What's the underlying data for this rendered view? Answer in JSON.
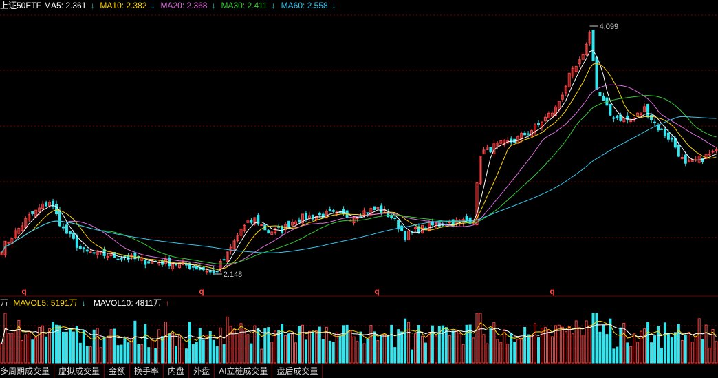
{
  "legend": {
    "title": "上证50ETF",
    "items": [
      {
        "label": "MA5: 2.361",
        "color": "#ffffff",
        "trend": "down"
      },
      {
        "label": "MA10: 2.382",
        "color": "#ffd700",
        "trend": "down"
      },
      {
        "label": "MA20: 2.368",
        "color": "#e070e0",
        "trend": "down"
      },
      {
        "label": "MA30: 2.411",
        "color": "#33cc33",
        "trend": "down"
      },
      {
        "label": "MA60: 2.558",
        "color": "#33c8f0",
        "trend": "down"
      }
    ]
  },
  "volume_legend": {
    "unit": "万",
    "items": [
      {
        "label": "MAVOL5: 5191万",
        "color": "#ffd700",
        "trend": "down"
      },
      {
        "label": "MAVOL10: 4811万",
        "color": "#ffffff",
        "trend": "up"
      }
    ]
  },
  "annotations": {
    "high": "4.099",
    "low": "2.148",
    "markers": [
      "q",
      "q",
      "q",
      "q"
    ]
  },
  "tabs": [
    "多周期成交量",
    "虚拟成交量",
    "金额",
    "换手率",
    "内盘",
    "外盘",
    "AI立桩成交量",
    "盘后成交量"
  ],
  "colors": {
    "up": "#ff4444",
    "down": "#33e6f0",
    "grid": "#7a0000"
  },
  "chart_data": {
    "type": "candlestick",
    "price_range": [
      2.148,
      4.099
    ],
    "anchors": [
      [
        0,
        2.35
      ],
      [
        8,
        2.6
      ],
      [
        14,
        2.72
      ],
      [
        18,
        2.5
      ],
      [
        24,
        2.32
      ],
      [
        30,
        2.3
      ],
      [
        36,
        2.28
      ],
      [
        42,
        2.25
      ],
      [
        48,
        2.24
      ],
      [
        54,
        2.22
      ],
      [
        60,
        2.18
      ],
      [
        62,
        2.148
      ],
      [
        66,
        2.3
      ],
      [
        70,
        2.5
      ],
      [
        74,
        2.58
      ],
      [
        78,
        2.48
      ],
      [
        82,
        2.5
      ],
      [
        86,
        2.58
      ],
      [
        90,
        2.6
      ],
      [
        96,
        2.62
      ],
      [
        102,
        2.6
      ],
      [
        106,
        2.64
      ],
      [
        110,
        2.66
      ],
      [
        114,
        2.6
      ],
      [
        118,
        2.45
      ],
      [
        122,
        2.5
      ],
      [
        126,
        2.53
      ],
      [
        130,
        2.55
      ],
      [
        134,
        2.56
      ],
      [
        138,
        2.58
      ],
      [
        140,
        3.1
      ],
      [
        144,
        3.15
      ],
      [
        150,
        3.2
      ],
      [
        156,
        3.3
      ],
      [
        162,
        3.45
      ],
      [
        166,
        3.7
      ],
      [
        170,
        3.85
      ],
      [
        172,
        4.099
      ],
      [
        174,
        3.6
      ],
      [
        178,
        3.4
      ],
      [
        184,
        3.35
      ],
      [
        188,
        3.45
      ],
      [
        192,
        3.3
      ],
      [
        196,
        3.2
      ],
      [
        200,
        3.0
      ],
      [
        204,
        3.05
      ],
      [
        208,
        3.1
      ]
    ],
    "volume_max": 100
  }
}
